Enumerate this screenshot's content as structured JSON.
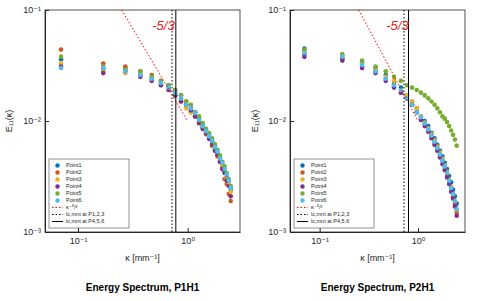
{
  "chart_data": [
    {
      "type": "scatter",
      "title": "Energy Spectrum, P1H1",
      "x_label": "κ [mm⁻¹]",
      "y_label": "E₁₁(κ)",
      "annotation": "-5/3",
      "log": true,
      "legend": "southwest",
      "xlim": [
        0.05,
        3
      ],
      "ylim": [
        0.001,
        0.1
      ],
      "xticks": [
        {
          "value": 0.1,
          "label": "10⁻¹"
        },
        {
          "value": 1,
          "label": "10⁰"
        }
      ],
      "yticks": [
        {
          "value": 0.001,
          "label": "10⁻³"
        },
        {
          "value": 0.01,
          "label": "10⁻²"
        },
        {
          "value": 0.1,
          "label": "10⁻¹"
        }
      ],
      "x": [
        0.07,
        0.17,
        0.27,
        0.37,
        0.47,
        0.57,
        0.67,
        0.77,
        0.87,
        0.97,
        1.07,
        1.17,
        1.27,
        1.37,
        1.47,
        1.57,
        1.67,
        1.77,
        1.87,
        1.97,
        2.07,
        2.17,
        2.27,
        2.37,
        2.47
      ],
      "series": [
        {
          "name": "Point1",
          "color": "#0072bd",
          "marker": "circle",
          "values": [
            0.036,
            0.029,
            0.03,
            0.026,
            0.024,
            0.022,
            0.021,
            0.018,
            0.017,
            0.014,
            0.013,
            0.012,
            0.0105,
            0.0092,
            0.0082,
            0.0075,
            0.0066,
            0.006,
            0.005,
            0.0047,
            0.004,
            0.0035,
            0.0031,
            0.0029,
            0.0024
          ]
        },
        {
          "name": "Point2",
          "color": "#d95319",
          "marker": "circle",
          "values": [
            0.044,
            0.033,
            0.031,
            0.028,
            0.026,
            0.023,
            0.02,
            0.019,
            0.016,
            0.015,
            0.012,
            0.011,
            0.0095,
            0.0088,
            0.0076,
            0.007,
            0.006,
            0.0055,
            0.0048,
            0.0043,
            0.0038,
            0.003,
            0.0027,
            0.0022,
            0.0019
          ]
        },
        {
          "name": "Point3",
          "color": "#edb120",
          "marker": "circle",
          "values": [
            0.033,
            0.028,
            0.027,
            0.027,
            0.024,
            0.021,
            0.019,
            0.017,
            0.015,
            0.013,
            0.012,
            0.011,
            0.0098,
            0.0087,
            0.008,
            0.007,
            0.0064,
            0.0057,
            0.0051,
            0.0044,
            0.004,
            0.0036,
            0.003,
            0.0027,
            0.0023
          ]
        },
        {
          "name": "Point4",
          "color": "#7e2f8e",
          "marker": "circle",
          "values": [
            0.031,
            0.027,
            0.028,
            0.025,
            0.023,
            0.021,
            0.019,
            0.017,
            0.015,
            0.014,
            0.0125,
            0.011,
            0.0097,
            0.0085,
            0.0078,
            0.0069,
            0.0062,
            0.0054,
            0.005,
            0.0043,
            0.0037,
            0.0034,
            0.0029,
            0.0026,
            0.0021
          ]
        },
        {
          "name": "Point5",
          "color": "#77ac30",
          "marker": "circle",
          "values": [
            0.038,
            0.031,
            0.029,
            0.028,
            0.025,
            0.023,
            0.021,
            0.019,
            0.017,
            0.015,
            0.014,
            0.012,
            0.011,
            0.0096,
            0.0085,
            0.0078,
            0.007,
            0.0062,
            0.0055,
            0.0049,
            0.0043,
            0.0039,
            0.0034,
            0.003,
            0.0026
          ]
        },
        {
          "name": "Point6",
          "color": "#4dbeee",
          "marker": "circle",
          "values": [
            0.03,
            0.03,
            0.028,
            0.026,
            0.024,
            0.022,
            0.02,
            0.018,
            0.016,
            0.014,
            0.013,
            0.0118,
            0.0102,
            0.009,
            0.0081,
            0.0073,
            0.0066,
            0.0058,
            0.0053,
            0.0046,
            0.0042,
            0.0037,
            0.0033,
            0.0029,
            0.0025
          ]
        },
        {
          "name": "κ⁻⁵/³",
          "type": "line",
          "color": "#ff0000",
          "line_style": "dotted",
          "x": [
            0.25,
            1.0
          ],
          "values": [
            0.1,
            0.01
          ]
        },
        {
          "name": "lc,mnt at P1,2,3",
          "type": "line",
          "color": "#000000",
          "line_style": "dotted",
          "x": [
            0.72,
            0.72
          ],
          "values": [
            0.001,
            0.1
          ]
        },
        {
          "name": "lc,mnt at P4,5,6",
          "type": "line",
          "color": "#000000",
          "line_style": "solid",
          "x": [
            0.78,
            0.78
          ],
          "values": [
            0.001,
            0.1
          ]
        }
      ]
    },
    {
      "type": "scatter",
      "title": "Energy Spectrum, P2H1",
      "x_label": "κ [mm⁻¹]",
      "y_label": "E₁₁(κ)",
      "annotation": "-5/3",
      "log": true,
      "legend": "southwest",
      "xlim": [
        0.05,
        3
      ],
      "ylim": [
        0.001,
        0.1
      ],
      "xticks": [
        {
          "value": 0.1,
          "label": "10⁻¹"
        },
        {
          "value": 1,
          "label": "10⁰"
        }
      ],
      "yticks": [
        {
          "value": 0.001,
          "label": "10⁻³"
        },
        {
          "value": 0.01,
          "label": "10⁻²"
        },
        {
          "value": 0.1,
          "label": "10⁻¹"
        }
      ],
      "x": [
        0.07,
        0.17,
        0.27,
        0.37,
        0.47,
        0.57,
        0.67,
        0.77,
        0.87,
        0.97,
        1.07,
        1.17,
        1.27,
        1.37,
        1.47,
        1.57,
        1.67,
        1.77,
        1.87,
        1.97,
        2.07,
        2.17,
        2.27,
        2.37,
        2.47
      ],
      "series": [
        {
          "name": "Point1",
          "color": "#0072bd",
          "marker": "circle",
          "values": [
            0.045,
            0.037,
            0.034,
            0.03,
            0.026,
            0.022,
            0.02,
            0.017,
            0.015,
            0.013,
            0.011,
            0.01,
            0.009,
            0.0078,
            0.007,
            0.0061,
            0.0054,
            0.0048,
            0.0042,
            0.0037,
            0.0032,
            0.0028,
            0.0024,
            0.0021,
            0.0018
          ]
        },
        {
          "name": "Point2",
          "color": "#d95319",
          "marker": "circle",
          "values": [
            0.04,
            0.036,
            0.031,
            0.028,
            0.024,
            0.021,
            0.018,
            0.016,
            0.014,
            0.012,
            0.0105,
            0.0093,
            0.0082,
            0.0072,
            0.0064,
            0.0056,
            0.005,
            0.0044,
            0.0038,
            0.0033,
            0.0029,
            0.0025,
            0.0021,
            0.0018,
            0.0015
          ]
        },
        {
          "name": "Point3",
          "color": "#edb120",
          "marker": "circle",
          "values": [
            0.043,
            0.039,
            0.033,
            0.029,
            0.025,
            0.023,
            0.019,
            0.017,
            0.015,
            0.013,
            0.011,
            0.0097,
            0.0086,
            0.0076,
            0.0067,
            0.0059,
            0.0052,
            0.0046,
            0.004,
            0.0035,
            0.003,
            0.0026,
            0.0022,
            0.0019,
            0.0016
          ]
        },
        {
          "name": "Point4",
          "color": "#7e2f8e",
          "marker": "circle",
          "values": [
            0.038,
            0.035,
            0.03,
            0.027,
            0.023,
            0.02,
            0.018,
            0.016,
            0.014,
            0.012,
            0.0102,
            0.009,
            0.008,
            0.007,
            0.0061,
            0.0054,
            0.0047,
            0.0041,
            0.0036,
            0.0031,
            0.0027,
            0.0023,
            0.002,
            0.0017,
            0.0014
          ]
        },
        {
          "name": "Point5",
          "color": "#77ac30",
          "marker": "circle",
          "values": [
            0.044,
            0.04,
            0.035,
            0.031,
            0.028,
            0.025,
            0.023,
            0.021,
            0.02,
            0.019,
            0.018,
            0.017,
            0.016,
            0.015,
            0.014,
            0.013,
            0.012,
            0.011,
            0.0105,
            0.0098,
            0.009,
            0.0082,
            0.0075,
            0.0068,
            0.006
          ]
        },
        {
          "name": "Point6",
          "color": "#4dbeee",
          "marker": "circle",
          "values": [
            0.041,
            0.038,
            0.032,
            0.028,
            0.024,
            0.021,
            0.019,
            0.016,
            0.014,
            0.012,
            0.0108,
            0.0095,
            0.0084,
            0.0074,
            0.0065,
            0.0057,
            0.005,
            0.0044,
            0.0039,
            0.0034,
            0.0029,
            0.0025,
            0.0022,
            0.0019,
            0.0016
          ]
        },
        {
          "name": "κ⁻⁵/³",
          "type": "line",
          "color": "#ff0000",
          "line_style": "dotted",
          "x": [
            0.25,
            1.0
          ],
          "values": [
            0.1,
            0.01
          ]
        },
        {
          "name": "lc,mnt at P1,2,3",
          "type": "line",
          "color": "#000000",
          "line_style": "dotted",
          "x": [
            0.72,
            0.72
          ],
          "values": [
            0.001,
            0.1
          ]
        },
        {
          "name": "lc,mnt at P4,5,6",
          "type": "line",
          "color": "#000000",
          "line_style": "solid",
          "x": [
            0.8,
            0.8
          ],
          "values": [
            0.001,
            0.1
          ]
        }
      ]
    }
  ]
}
